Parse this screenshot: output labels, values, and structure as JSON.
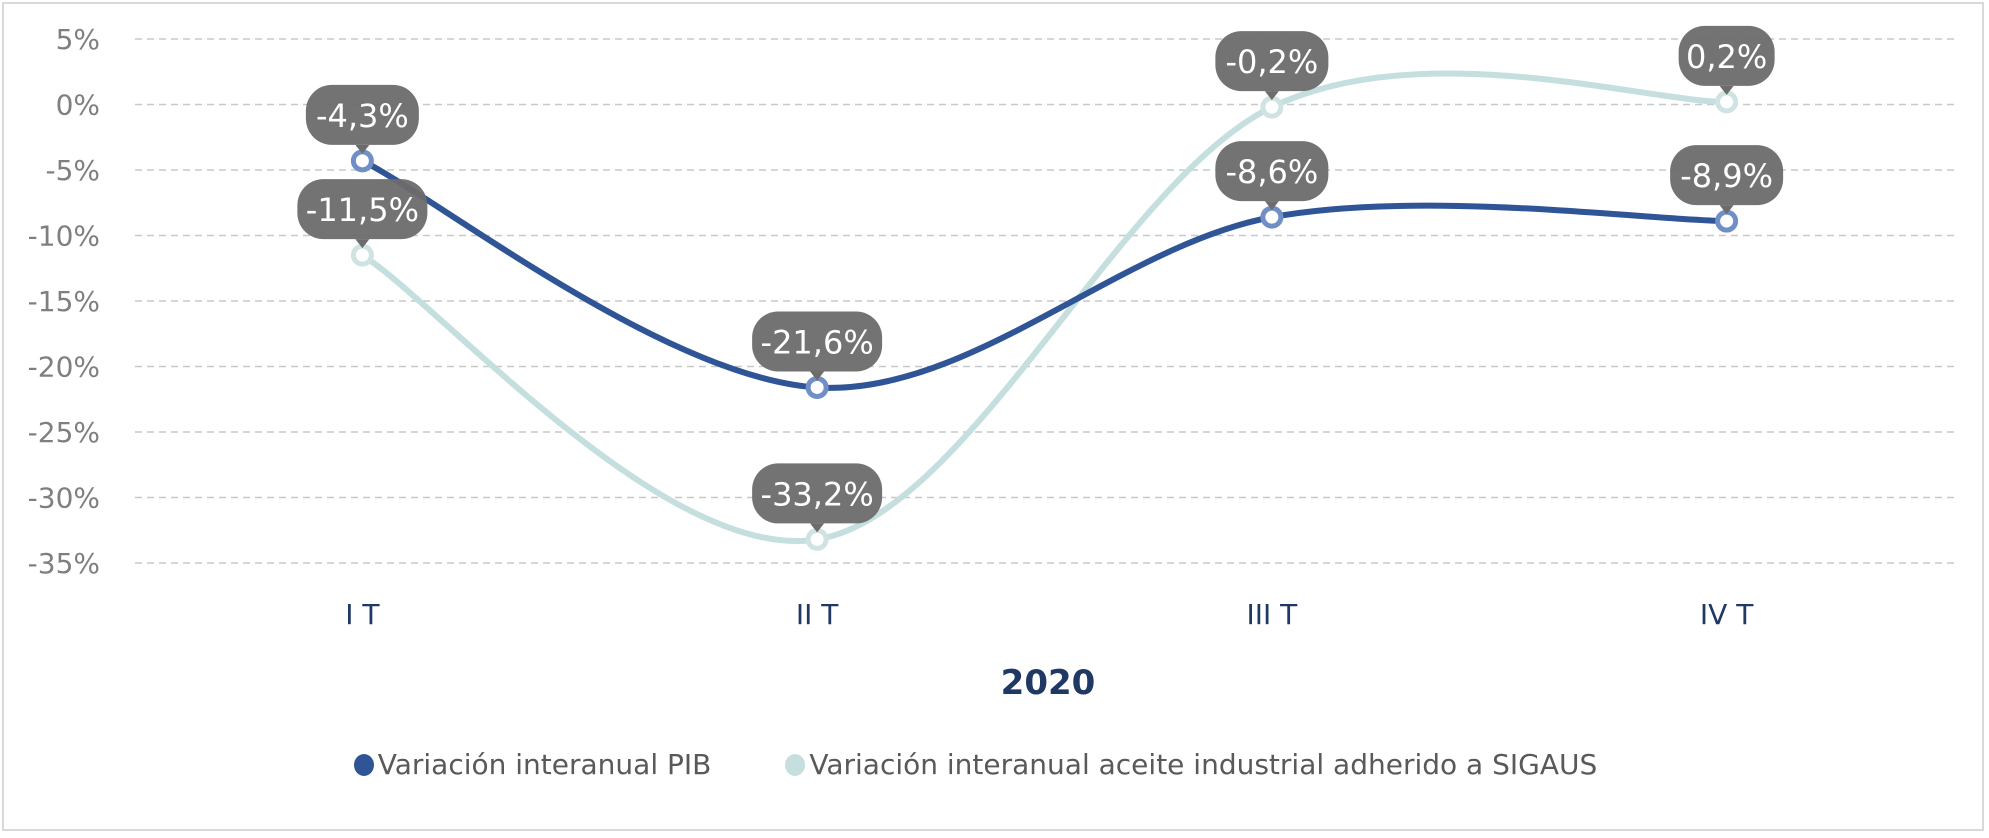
{
  "chart_data": {
    "type": "line",
    "title": "",
    "xlabel": "2020",
    "ylabel": "",
    "categories": [
      "I T",
      "II T",
      "III T",
      "IV T"
    ],
    "ylim": [
      -35,
      5
    ],
    "yticks": [
      5,
      0,
      -5,
      -10,
      -15,
      -20,
      -25,
      -30,
      -35
    ],
    "ytick_labels": [
      "5%",
      "0%",
      "-5%",
      "-10%",
      "-15%",
      "-20%",
      "-25%",
      "-30%",
      "-35%"
    ],
    "grid": true,
    "smooth": true,
    "legend_position": "bottom",
    "series": [
      {
        "name": "Variación interanual PIB",
        "values": [
          -4.3,
          -21.6,
          -8.6,
          -8.9
        ],
        "labels": [
          "-4,3%",
          "-21,6%",
          "-8,6%",
          "-8,9%"
        ],
        "color": "#2f5597",
        "marker_color": "#6f8fc6"
      },
      {
        "name": "Variación interanual aceite industrial adherido a SIGAUS",
        "values": [
          -11.5,
          -33.2,
          -0.2,
          0.2
        ],
        "labels": [
          "-11,5%",
          "-33,2%",
          "-0,2%",
          "0,2%"
        ],
        "color": "#c5dede",
        "marker_color": "#cfe3e3"
      }
    ],
    "data_label_bg": "#6d6b6b"
  }
}
